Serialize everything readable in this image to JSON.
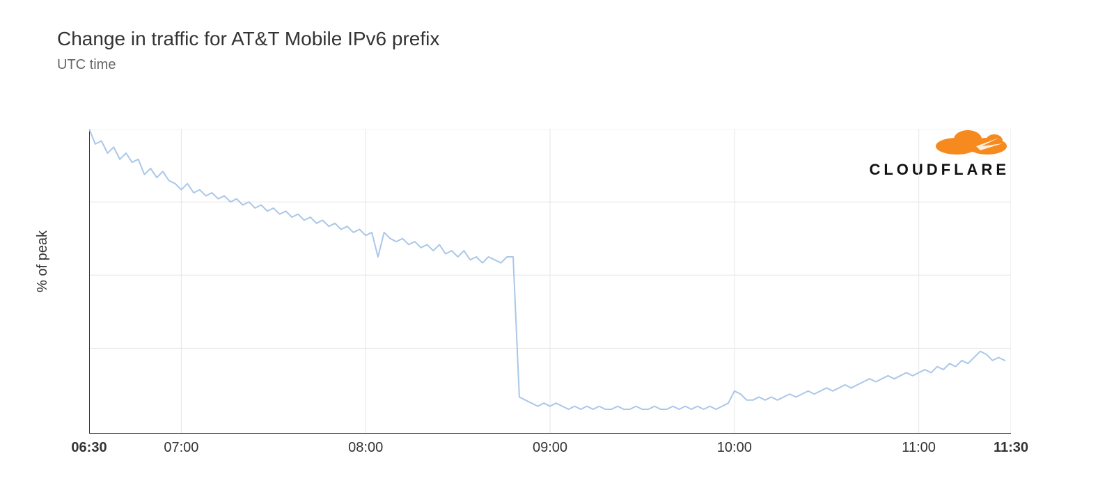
{
  "title": "Change in traffic for AT&T Mobile IPv6 prefix",
  "subtitle": "UTC time",
  "ylabel": "% of peak",
  "brand": "CLOUDFLARE",
  "brand_color": "#f68a1f",
  "chart": {
    "type": "line",
    "line_color": "#aac7e8",
    "line_width": 2,
    "background_color": "#ffffff",
    "grid_color": "#e6e6e6",
    "axis_color": "#333333",
    "tick_color": "#9a9a9a",
    "xlim": [
      390,
      690
    ],
    "ylim": [
      0,
      100
    ],
    "y_gridlines": [
      28,
      52,
      76,
      100
    ],
    "x_ticks": [
      {
        "value": 390,
        "label": "06:30",
        "bold": true
      },
      {
        "value": 420,
        "label": "07:00",
        "bold": false
      },
      {
        "value": 480,
        "label": "08:00",
        "bold": false
      },
      {
        "value": 540,
        "label": "09:00",
        "bold": false
      },
      {
        "value": 600,
        "label": "10:00",
        "bold": false
      },
      {
        "value": 660,
        "label": "11:00",
        "bold": false
      },
      {
        "value": 690,
        "label": "11:30",
        "bold": true
      }
    ],
    "x_minor_step": 30,
    "data": [
      [
        390,
        100
      ],
      [
        392,
        95
      ],
      [
        394,
        96
      ],
      [
        396,
        92
      ],
      [
        398,
        94
      ],
      [
        400,
        90
      ],
      [
        402,
        92
      ],
      [
        404,
        89
      ],
      [
        406,
        90
      ],
      [
        408,
        85
      ],
      [
        410,
        87
      ],
      [
        412,
        84
      ],
      [
        414,
        86
      ],
      [
        416,
        83
      ],
      [
        418,
        82
      ],
      [
        420,
        80
      ],
      [
        422,
        82
      ],
      [
        424,
        79
      ],
      [
        426,
        80
      ],
      [
        428,
        78
      ],
      [
        430,
        79
      ],
      [
        432,
        77
      ],
      [
        434,
        78
      ],
      [
        436,
        76
      ],
      [
        438,
        77
      ],
      [
        440,
        75
      ],
      [
        442,
        76
      ],
      [
        444,
        74
      ],
      [
        446,
        75
      ],
      [
        448,
        73
      ],
      [
        450,
        74
      ],
      [
        452,
        72
      ],
      [
        454,
        73
      ],
      [
        456,
        71
      ],
      [
        458,
        72
      ],
      [
        460,
        70
      ],
      [
        462,
        71
      ],
      [
        464,
        69
      ],
      [
        466,
        70
      ],
      [
        468,
        68
      ],
      [
        470,
        69
      ],
      [
        472,
        67
      ],
      [
        474,
        68
      ],
      [
        476,
        66
      ],
      [
        478,
        67
      ],
      [
        480,
        65
      ],
      [
        482,
        66
      ],
      [
        484,
        58
      ],
      [
        486,
        66
      ],
      [
        488,
        64
      ],
      [
        490,
        63
      ],
      [
        492,
        64
      ],
      [
        494,
        62
      ],
      [
        496,
        63
      ],
      [
        498,
        61
      ],
      [
        500,
        62
      ],
      [
        502,
        60
      ],
      [
        504,
        62
      ],
      [
        506,
        59
      ],
      [
        508,
        60
      ],
      [
        510,
        58
      ],
      [
        512,
        60
      ],
      [
        514,
        57
      ],
      [
        516,
        58
      ],
      [
        518,
        56
      ],
      [
        520,
        58
      ],
      [
        522,
        57
      ],
      [
        524,
        56
      ],
      [
        526,
        58
      ],
      [
        528,
        58
      ],
      [
        530,
        12
      ],
      [
        532,
        11
      ],
      [
        534,
        10
      ],
      [
        536,
        9
      ],
      [
        538,
        10
      ],
      [
        540,
        9
      ],
      [
        542,
        10
      ],
      [
        544,
        9
      ],
      [
        546,
        8
      ],
      [
        548,
        9
      ],
      [
        550,
        8
      ],
      [
        552,
        9
      ],
      [
        554,
        8
      ],
      [
        556,
        9
      ],
      [
        558,
        8
      ],
      [
        560,
        8
      ],
      [
        562,
        9
      ],
      [
        564,
        8
      ],
      [
        566,
        8
      ],
      [
        568,
        9
      ],
      [
        570,
        8
      ],
      [
        572,
        8
      ],
      [
        574,
        9
      ],
      [
        576,
        8
      ],
      [
        578,
        8
      ],
      [
        580,
        9
      ],
      [
        582,
        8
      ],
      [
        584,
        9
      ],
      [
        586,
        8
      ],
      [
        588,
        9
      ],
      [
        590,
        8
      ],
      [
        592,
        9
      ],
      [
        594,
        8
      ],
      [
        596,
        9
      ],
      [
        598,
        10
      ],
      [
        600,
        14
      ],
      [
        602,
        13
      ],
      [
        604,
        11
      ],
      [
        606,
        11
      ],
      [
        608,
        12
      ],
      [
        610,
        11
      ],
      [
        612,
        12
      ],
      [
        614,
        11
      ],
      [
        616,
        12
      ],
      [
        618,
        13
      ],
      [
        620,
        12
      ],
      [
        622,
        13
      ],
      [
        624,
        14
      ],
      [
        626,
        13
      ],
      [
        628,
        14
      ],
      [
        630,
        15
      ],
      [
        632,
        14
      ],
      [
        634,
        15
      ],
      [
        636,
        16
      ],
      [
        638,
        15
      ],
      [
        640,
        16
      ],
      [
        642,
        17
      ],
      [
        644,
        18
      ],
      [
        646,
        17
      ],
      [
        648,
        18
      ],
      [
        650,
        19
      ],
      [
        652,
        18
      ],
      [
        654,
        19
      ],
      [
        656,
        20
      ],
      [
        658,
        19
      ],
      [
        660,
        20
      ],
      [
        662,
        21
      ],
      [
        664,
        20
      ],
      [
        666,
        22
      ],
      [
        668,
        21
      ],
      [
        670,
        23
      ],
      [
        672,
        22
      ],
      [
        674,
        24
      ],
      [
        676,
        23
      ],
      [
        678,
        25
      ],
      [
        680,
        27
      ],
      [
        682,
        26
      ],
      [
        684,
        24
      ],
      [
        686,
        25
      ],
      [
        688,
        24
      ]
    ]
  }
}
